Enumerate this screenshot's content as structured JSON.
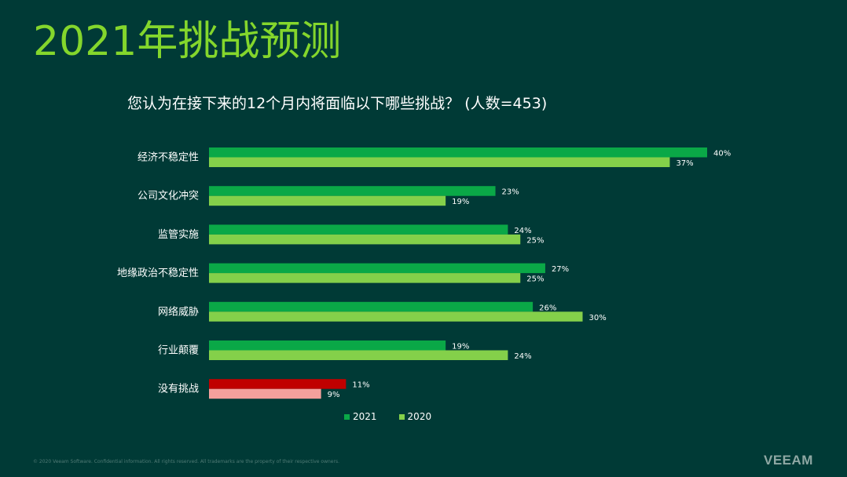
{
  "slide": {
    "title": "2021年挑战预测",
    "footer": "© 2020 Veeam Software. Confidential information. All rights reserved. All trademarks are the property of their respective owners.",
    "logo": "VEEAM"
  },
  "chart_data": {
    "type": "bar",
    "orientation": "horizontal",
    "title": "您认为在接下来的12个月内将面临以下哪些挑战？ (人数=453)",
    "categories": [
      "经济不稳定性",
      "公司文化冲突",
      "监管实施",
      "地缘政治不稳定性",
      "网络威胁",
      "行业颠覆",
      "没有挑战"
    ],
    "series": [
      {
        "name": "2021",
        "values": [
          40,
          23,
          24,
          27,
          26,
          19,
          11
        ],
        "color": "#0aa847",
        "highlight_color": "#c00000"
      },
      {
        "name": "2020",
        "values": [
          37,
          19,
          25,
          25,
          30,
          24,
          9
        ],
        "color": "#84d04a",
        "highlight_color": "#f4a09c"
      }
    ],
    "value_suffix": "%",
    "highlight_category": "没有挑战",
    "xlim": [
      0,
      40
    ],
    "grid": false,
    "legend_position": "bottom"
  }
}
